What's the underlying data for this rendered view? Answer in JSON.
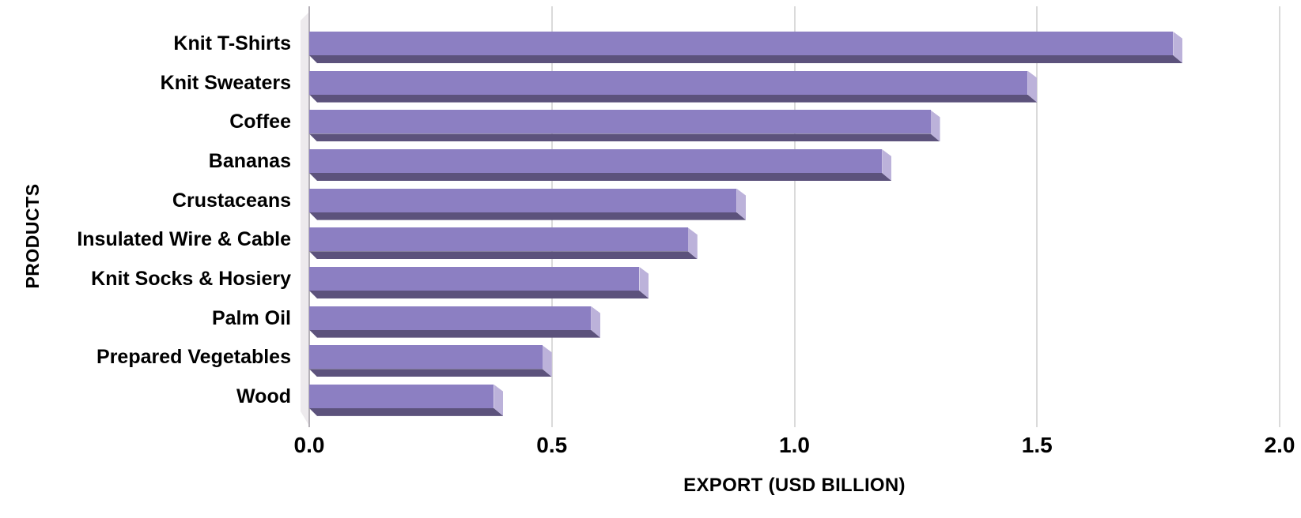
{
  "chart_data": {
    "type": "bar",
    "orientation": "horizontal",
    "title": "",
    "xlabel": "EXPORT (USD BILLION)",
    "ylabel": "PRODUCTS",
    "categories": [
      "Knit T-Shirts",
      "Knit Sweaters",
      "Coffee",
      "Bananas",
      "Crustaceans",
      "Insulated Wire & Cable",
      "Knit Socks & Hosiery",
      "Palm Oil",
      "Prepared Vegetables",
      "Wood"
    ],
    "values": [
      1.8,
      1.5,
      1.3,
      1.2,
      0.9,
      0.8,
      0.7,
      0.6,
      0.5,
      0.4
    ],
    "xlim": [
      0.0,
      2.0
    ],
    "xticks": [
      "0.0",
      "0.5",
      "1.0",
      "1.5",
      "2.0"
    ],
    "grid": true,
    "legend": false,
    "bar_style": "3d-beveled",
    "colors": {
      "bar_face": "#8c7fc2",
      "bar_end_cap": "#bcb2da",
      "bar_bottom_bevel": "#5c527c",
      "gridline": "#dadada",
      "wall": "#edeaed",
      "wall_edge": "#b5b1b8",
      "text": "#000000",
      "background": "#ffffff"
    }
  }
}
